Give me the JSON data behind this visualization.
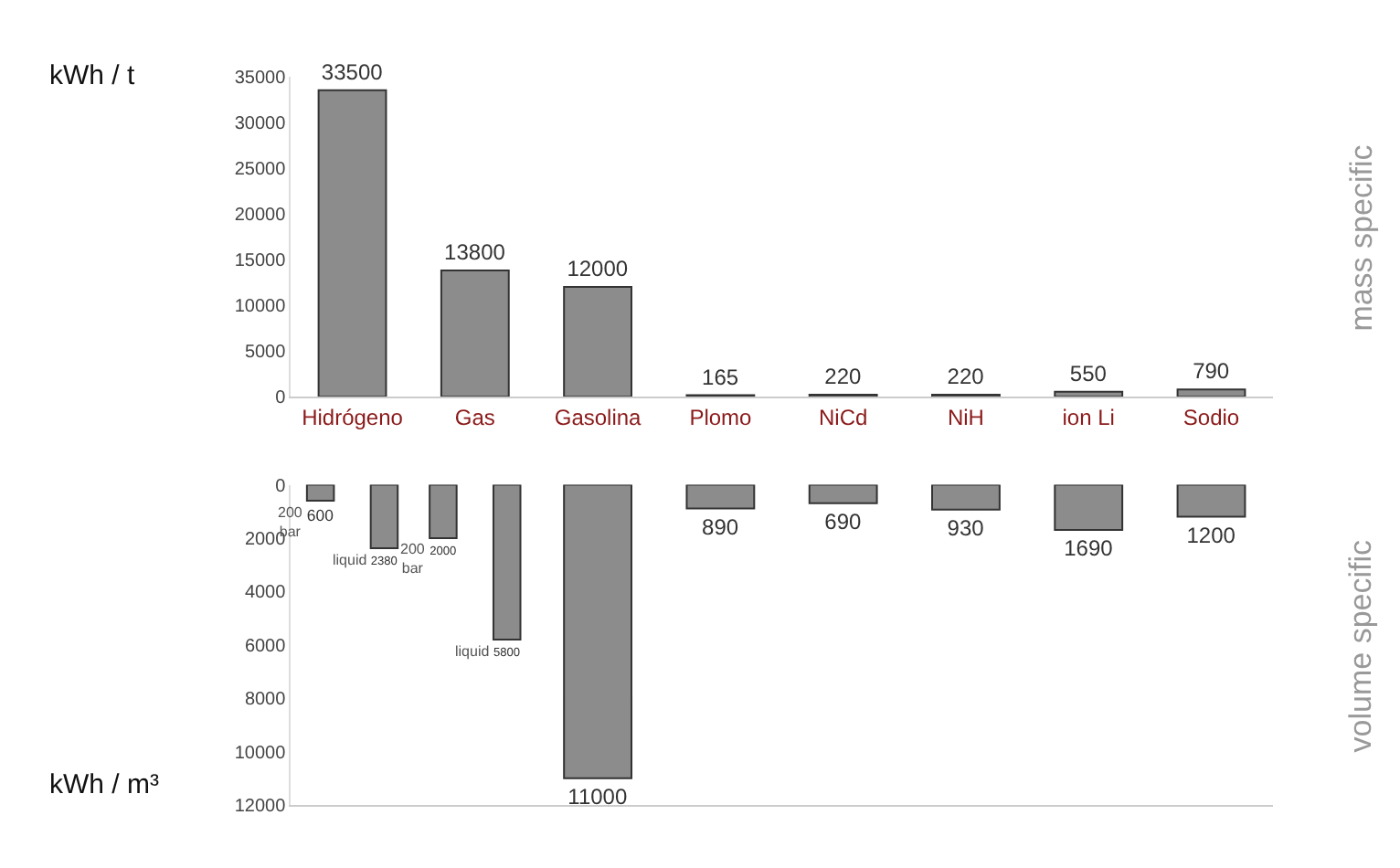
{
  "chart_data": [
    {
      "type": "bar",
      "ylabel": "kWh / t",
      "categories": [
        "Hidrógeno",
        "Gas",
        "Gasolina",
        "Plomo",
        "NiCd",
        "NiH",
        "ion Li",
        "Sodio"
      ],
      "series": [
        {
          "color": "#8c8c8c",
          "values": [
            33500,
            13800,
            12000,
            165,
            220,
            220,
            550,
            790
          ]
        }
      ],
      "ylim": [
        0,
        35000
      ],
      "yticks": [
        0,
        5000,
        10000,
        15000,
        20000,
        25000,
        30000,
        35000
      ],
      "data_labels": true,
      "annotations": [
        "mass specific"
      ]
    },
    {
      "type": "bar",
      "ylabel": "kWh / m³",
      "categories": [
        null,
        null,
        null,
        null,
        null,
        null,
        null,
        null
      ],
      "series": [
        {
          "name": "200 bar",
          "color": "#8c8c8c",
          "values": [
            600,
            2000,
            null,
            null,
            null,
            null,
            null,
            null
          ]
        },
        {
          "name": "liquid",
          "color": "#8c8c8c",
          "values": [
            2380,
            5800,
            null,
            null,
            null,
            null,
            null,
            null
          ]
        },
        {
          "color": "#8c8c8c",
          "values": [
            null,
            null,
            11000,
            890,
            690,
            930,
            1690,
            1200
          ]
        }
      ],
      "ylim": [
        12000,
        0
      ],
      "yticks": [
        0,
        2000,
        4000,
        6000,
        8000,
        10000,
        12000
      ],
      "data_labels": true,
      "tick_labels": "y",
      "annotations": [
        "volume specific"
      ]
    }
  ]
}
